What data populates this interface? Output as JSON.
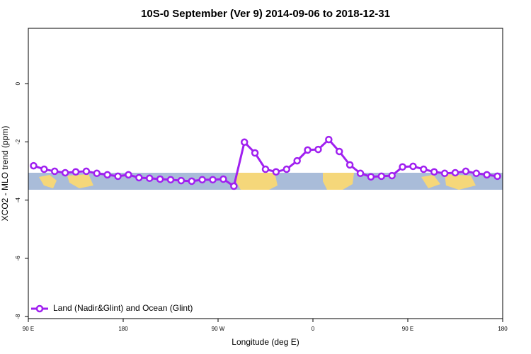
{
  "chart_data": {
    "type": "line",
    "title": "10S-0 September (Ver 9)   2014-09-06 to 2018-12-31",
    "x_label": "Longitude (deg E)",
    "y_label": "XCO2 - MLO trend (ppm)",
    "xlim": [
      90,
      540
    ],
    "xticks": [
      {
        "value": 90,
        "label": "90 E"
      },
      {
        "value": 180,
        "label": "180"
      },
      {
        "value": 270,
        "label": "90 W"
      },
      {
        "value": 360,
        "label": "0"
      },
      {
        "value": 450,
        "label": "90 E"
      },
      {
        "value": 540,
        "label": "180"
      }
    ],
    "ylim": [
      -8.07,
      1.9
    ],
    "yticks": [
      0,
      -2,
      -4,
      -6,
      -8
    ],
    "legend": "bottom-left",
    "x": [
      95,
      105,
      115,
      125,
      135,
      145,
      155,
      165,
      175,
      185,
      195,
      205,
      215,
      225,
      235,
      245,
      255,
      265,
      275,
      285,
      295,
      305,
      315,
      325,
      335,
      345,
      355,
      365,
      375,
      385,
      395,
      405,
      415,
      425,
      435,
      445,
      455,
      465,
      475,
      485,
      495,
      505,
      515,
      525,
      535
    ],
    "series": [
      {
        "name": "Land (Nadir&Glint) and Ocean (Glint)",
        "color": "#a020f0",
        "values": [
          -2.82,
          -2.94,
          -3.01,
          -3.06,
          -3.03,
          -3.01,
          -3.08,
          -3.13,
          -3.18,
          -3.13,
          -3.23,
          -3.25,
          -3.28,
          -3.3,
          -3.33,
          -3.35,
          -3.3,
          -3.3,
          -3.28,
          -3.52,
          -2.01,
          -2.38,
          -2.94,
          -3.03,
          -2.94,
          -2.65,
          -2.28,
          -2.26,
          -1.92,
          -2.33,
          -2.79,
          -3.08,
          -3.2,
          -3.18,
          -3.16,
          -2.86,
          -2.84,
          -2.94,
          -3.03,
          -3.08,
          -3.06,
          -3.01,
          -3.08,
          -3.13,
          -3.18
        ]
      }
    ]
  }
}
